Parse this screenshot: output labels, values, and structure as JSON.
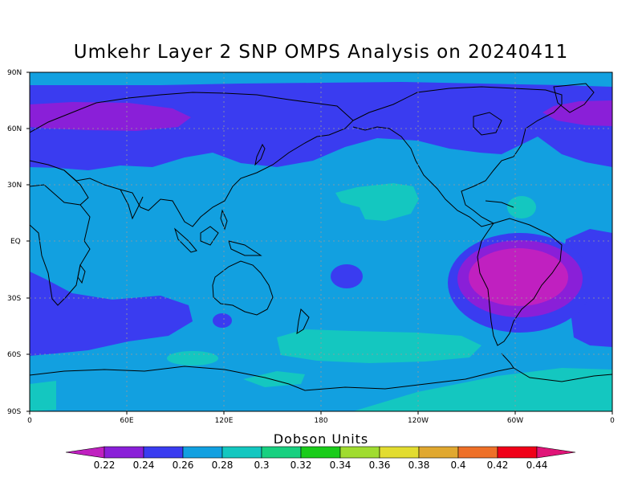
{
  "title": "Umkehr Layer 2 SNP OMPS Analysis on 20240411",
  "map": {
    "lat_labels": [
      "90N",
      "60N",
      "30N",
      "EQ",
      "30S",
      "60S",
      "90S"
    ],
    "lon_labels": [
      "0",
      "60E",
      "120E",
      "180",
      "120W",
      "60W",
      "0"
    ],
    "projection": "cylindrical equidistant, centered on 180",
    "grid": "dotted"
  },
  "colorbar": {
    "title": "Dobson Units",
    "levels": [
      "0.22",
      "0.24",
      "0.26",
      "0.28",
      "0.3",
      "0.32",
      "0.34",
      "0.36",
      "0.38",
      "0.4",
      "0.42",
      "0.44"
    ],
    "colors": [
      "#c020c0",
      "#8a1fd8",
      "#3a3cf0",
      "#12a0e0",
      "#14c7c0",
      "#18d080",
      "#1acc1a",
      "#a0dc30",
      "#e2dc30",
      "#e0a830",
      "#ee7028",
      "#f00018",
      "#e01478"
    ]
  }
}
